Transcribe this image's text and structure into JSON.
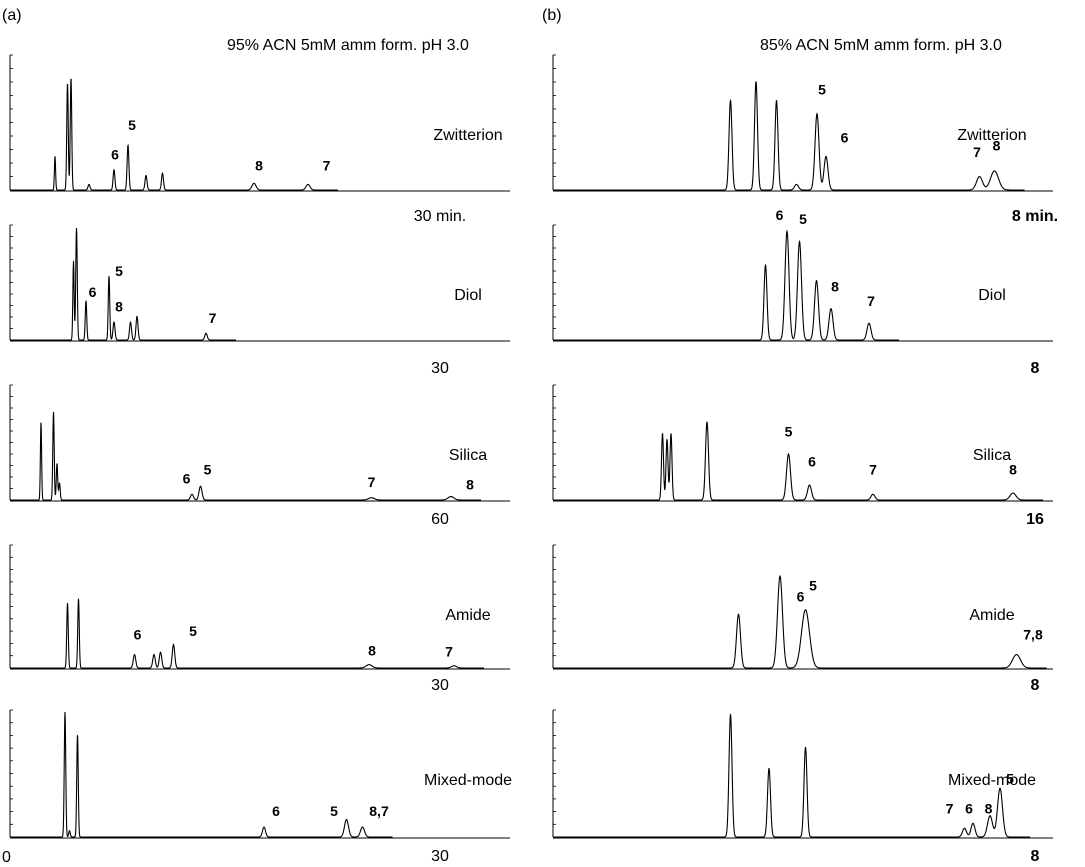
{
  "panel_a": {
    "letter": "(a)",
    "conditions": "95% ACN 5mM amm form. pH 3.0"
  },
  "panel_b": {
    "letter": "(b)",
    "conditions": "85% ACN 5mM amm form. pH 3.0"
  },
  "chart_data": [
    {
      "type": "line",
      "panel": "(a)",
      "column": "a",
      "label": "Zwitterion",
      "time_label": "30 min.",
      "peaks": [
        {
          "x": 0.09,
          "h": 0.3,
          "w": 0.0012
        },
        {
          "x": 0.115,
          "h": 0.95,
          "w": 0.0015
        },
        {
          "x": 0.122,
          "h": 1.0,
          "w": 0.0015
        },
        {
          "x": 0.158,
          "h": 0.05,
          "w": 0.002
        },
        {
          "x": 0.208,
          "h": 0.18,
          "w": 0.0018
        },
        {
          "x": 0.236,
          "h": 0.4,
          "w": 0.0018
        },
        {
          "x": 0.272,
          "h": 0.13,
          "w": 0.002
        },
        {
          "x": 0.305,
          "h": 0.15,
          "w": 0.002
        },
        {
          "x": 0.488,
          "h": 0.06,
          "w": 0.004
        },
        {
          "x": 0.596,
          "h": 0.05,
          "w": 0.004
        }
      ],
      "labels": [
        {
          "text": "6",
          "x": 0.21,
          "h": 0.22
        },
        {
          "text": "5",
          "x": 0.244,
          "h": 0.48
        },
        {
          "text": "8",
          "x": 0.498,
          "h": 0.12
        },
        {
          "text": "7",
          "x": 0.633,
          "h": 0.12
        }
      ]
    },
    {
      "type": "line",
      "panel": "(a)",
      "column": "a",
      "label": "Diol",
      "time_label": "30",
      "peaks": [
        {
          "x": 0.127,
          "h": 0.7,
          "w": 0.0013
        },
        {
          "x": 0.133,
          "h": 1.0,
          "w": 0.0015
        },
        {
          "x": 0.152,
          "h": 0.35,
          "w": 0.0015
        },
        {
          "x": 0.198,
          "h": 0.57,
          "w": 0.0015
        },
        {
          "x": 0.208,
          "h": 0.16,
          "w": 0.002
        },
        {
          "x": 0.241,
          "h": 0.16,
          "w": 0.002
        },
        {
          "x": 0.254,
          "h": 0.21,
          "w": 0.002
        },
        {
          "x": 0.392,
          "h": 0.06,
          "w": 0.0025
        }
      ],
      "labels": [
        {
          "text": "5",
          "x": 0.218,
          "h": 0.52
        },
        {
          "text": "6",
          "x": 0.165,
          "h": 0.33
        },
        {
          "text": "8",
          "x": 0.218,
          "h": 0.2
        },
        {
          "text": "7",
          "x": 0.405,
          "h": 0.1
        }
      ]
    },
    {
      "type": "line",
      "panel": "(a)",
      "column": "a",
      "label": "Silica",
      "time_label": "60",
      "peaks": [
        {
          "x": 0.062,
          "h": 0.68,
          "w": 0.0012
        },
        {
          "x": 0.087,
          "h": 0.77,
          "w": 0.0014
        },
        {
          "x": 0.094,
          "h": 0.32,
          "w": 0.0014
        },
        {
          "x": 0.099,
          "h": 0.15,
          "w": 0.0014
        },
        {
          "x": 0.364,
          "h": 0.05,
          "w": 0.003
        },
        {
          "x": 0.381,
          "h": 0.12,
          "w": 0.003
        },
        {
          "x": 0.723,
          "h": 0.02,
          "w": 0.006
        },
        {
          "x": 0.882,
          "h": 0.03,
          "w": 0.006
        }
      ],
      "labels": [
        {
          "text": "6",
          "x": 0.353,
          "h": 0.09
        },
        {
          "text": "5",
          "x": 0.395,
          "h": 0.17
        },
        {
          "text": "7",
          "x": 0.723,
          "h": 0.06
        },
        {
          "text": "8",
          "x": 0.92,
          "h": 0.04
        }
      ]
    },
    {
      "type": "line",
      "panel": "(a)",
      "column": "a",
      "label": "Amide",
      "time_label": "30",
      "peaks": [
        {
          "x": 0.115,
          "h": 0.58,
          "w": 0.0015
        },
        {
          "x": 0.137,
          "h": 0.62,
          "w": 0.0015
        },
        {
          "x": 0.249,
          "h": 0.12,
          "w": 0.0025
        },
        {
          "x": 0.288,
          "h": 0.12,
          "w": 0.0025
        },
        {
          "x": 0.301,
          "h": 0.14,
          "w": 0.0025
        },
        {
          "x": 0.327,
          "h": 0.21,
          "w": 0.0025
        },
        {
          "x": 0.718,
          "h": 0.03,
          "w": 0.006
        },
        {
          "x": 0.888,
          "h": 0.02,
          "w": 0.005
        }
      ],
      "labels": [
        {
          "text": "6",
          "x": 0.255,
          "h": 0.2
        },
        {
          "text": "5",
          "x": 0.366,
          "h": 0.23
        },
        {
          "text": "8",
          "x": 0.724,
          "h": 0.06
        },
        {
          "text": "7",
          "x": 0.878,
          "h": 0.05
        }
      ]
    },
    {
      "type": "line",
      "panel": "(a)",
      "column": "a",
      "label": "Mixed-mode",
      "time_label": "30",
      "peaks": [
        {
          "x": 0.11,
          "h": 1.0,
          "w": 0.0015
        },
        {
          "x": 0.119,
          "h": 0.05,
          "w": 0.0015
        },
        {
          "x": 0.135,
          "h": 0.82,
          "w": 0.0015
        },
        {
          "x": 0.508,
          "h": 0.08,
          "w": 0.003
        },
        {
          "x": 0.673,
          "h": 0.14,
          "w": 0.004
        },
        {
          "x": 0.705,
          "h": 0.08,
          "w": 0.004
        }
      ],
      "labels": [
        {
          "text": "6",
          "x": 0.532,
          "h": 0.12
        },
        {
          "text": "5",
          "x": 0.648,
          "h": 0.12
        },
        {
          "text": "8,7",
          "x": 0.738,
          "h": 0.12
        }
      ]
    },
    {
      "type": "line",
      "panel": "(b)",
      "column": "b",
      "label": "Zwitterion",
      "time_label": "8 min.",
      "peaks": [
        {
          "x": 0.355,
          "h": 0.8,
          "w": 0.003
        },
        {
          "x": 0.406,
          "h": 0.97,
          "w": 0.003
        },
        {
          "x": 0.447,
          "h": 0.8,
          "w": 0.003
        },
        {
          "x": 0.487,
          "h": 0.05,
          "w": 0.004
        },
        {
          "x": 0.528,
          "h": 0.68,
          "w": 0.004
        },
        {
          "x": 0.546,
          "h": 0.3,
          "w": 0.004
        },
        {
          "x": 0.853,
          "h": 0.12,
          "w": 0.006
        },
        {
          "x": 0.883,
          "h": 0.17,
          "w": 0.008
        }
      ],
      "labels": [
        {
          "text": "5",
          "x": 0.538,
          "h": 0.8
        },
        {
          "text": "6",
          "x": 0.583,
          "h": 0.37
        },
        {
          "text": "7",
          "x": 0.848,
          "h": 0.24
        },
        {
          "text": "8",
          "x": 0.887,
          "h": 0.3
        }
      ]
    },
    {
      "type": "line",
      "panel": "(b)",
      "column": "b",
      "label": "Diol",
      "time_label": "8",
      "peaks": [
        {
          "x": 0.425,
          "h": 0.67,
          "w": 0.003
        },
        {
          "x": 0.468,
          "h": 0.97,
          "w": 0.004
        },
        {
          "x": 0.493,
          "h": 0.88,
          "w": 0.004
        },
        {
          "x": 0.527,
          "h": 0.53,
          "w": 0.004
        },
        {
          "x": 0.556,
          "h": 0.28,
          "w": 0.004
        },
        {
          "x": 0.632,
          "h": 0.15,
          "w": 0.004
        }
      ],
      "labels": [
        {
          "text": "6",
          "x": 0.453,
          "h": 1.02
        },
        {
          "text": "5",
          "x": 0.5,
          "h": 0.98
        },
        {
          "text": "8",
          "x": 0.564,
          "h": 0.38
        },
        {
          "text": "7",
          "x": 0.636,
          "h": 0.25
        }
      ]
    },
    {
      "type": "line",
      "panel": "(b)",
      "column": "b",
      "label": "Silica",
      "time_label": "16",
      "peaks": [
        {
          "x": 0.219,
          "h": 0.58,
          "w": 0.002
        },
        {
          "x": 0.228,
          "h": 0.53,
          "w": 0.002
        },
        {
          "x": 0.236,
          "h": 0.58,
          "w": 0.002
        },
        {
          "x": 0.308,
          "h": 0.68,
          "w": 0.003
        },
        {
          "x": 0.471,
          "h": 0.4,
          "w": 0.004
        },
        {
          "x": 0.513,
          "h": 0.13,
          "w": 0.004
        },
        {
          "x": 0.64,
          "h": 0.05,
          "w": 0.004
        },
        {
          "x": 0.92,
          "h": 0.06,
          "w": 0.006
        }
      ],
      "labels": [
        {
          "text": "5",
          "x": 0.471,
          "h": 0.5
        },
        {
          "text": "6",
          "x": 0.518,
          "h": 0.24
        },
        {
          "text": "7",
          "x": 0.64,
          "h": 0.17
        },
        {
          "text": "8",
          "x": 0.92,
          "h": 0.17
        }
      ]
    },
    {
      "type": "line",
      "panel": "(b)",
      "column": "b",
      "label": "Amide",
      "time_label": "8",
      "peaks": [
        {
          "x": 0.371,
          "h": 0.48,
          "w": 0.004
        },
        {
          "x": 0.454,
          "h": 0.82,
          "w": 0.005
        },
        {
          "x": 0.505,
          "h": 0.52,
          "w": 0.008
        },
        {
          "x": 0.927,
          "h": 0.12,
          "w": 0.008
        }
      ],
      "labels": [
        {
          "text": "6",
          "x": 0.495,
          "h": 0.54
        },
        {
          "text": "5",
          "x": 0.52,
          "h": 0.64
        },
        {
          "text": "7,8",
          "x": 0.96,
          "h": 0.2
        }
      ]
    },
    {
      "type": "line",
      "panel": "(b)",
      "column": "b",
      "label": "Mixed-mode",
      "time_label": "8",
      "peaks": [
        {
          "x": 0.355,
          "h": 0.98,
          "w": 0.003
        },
        {
          "x": 0.432,
          "h": 0.55,
          "w": 0.003
        },
        {
          "x": 0.505,
          "h": 0.72,
          "w": 0.003
        },
        {
          "x": 0.823,
          "h": 0.07,
          "w": 0.004
        },
        {
          "x": 0.84,
          "h": 0.11,
          "w": 0.004
        },
        {
          "x": 0.874,
          "h": 0.17,
          "w": 0.005
        },
        {
          "x": 0.894,
          "h": 0.39,
          "w": 0.005
        }
      ],
      "labels": [
        {
          "text": "7",
          "x": 0.793,
          "h": 0.14
        },
        {
          "text": "6",
          "x": 0.832,
          "h": 0.14
        },
        {
          "text": "8",
          "x": 0.871,
          "h": 0.14
        },
        {
          "text": "5",
          "x": 0.914,
          "h": 0.38
        }
      ]
    }
  ],
  "axis_ticks": {
    "zero_a": "0",
    "end_a": "30",
    "end_b": "8"
  }
}
